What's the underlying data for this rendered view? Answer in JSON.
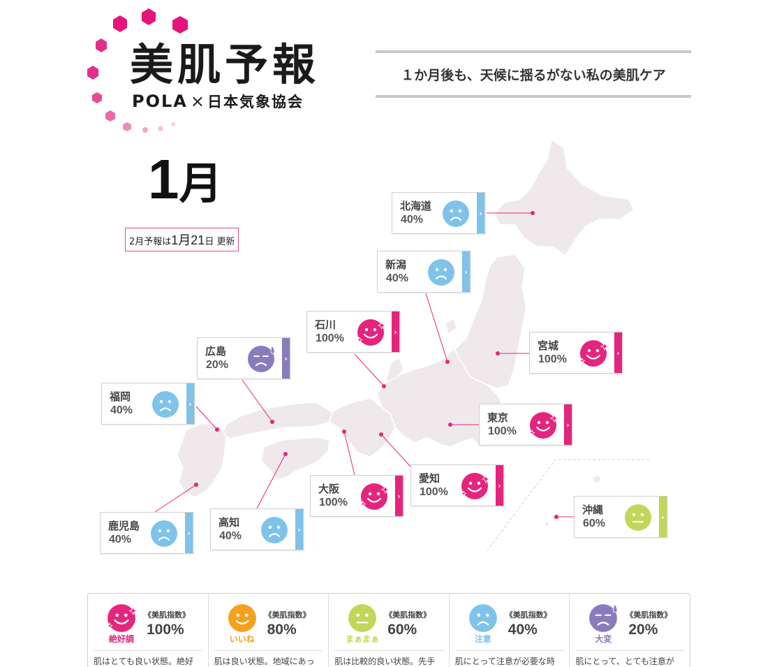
{
  "logo": {
    "title": "美肌予報",
    "brand": "POLA",
    "cross": "×",
    "partner": "日本気象協会"
  },
  "tagline": "１か月後も、天候に揺るがない私の美肌ケア",
  "month": {
    "number": "1",
    "kanji": "月"
  },
  "next_update": {
    "prefix": "2月予報は",
    "date": "1月21",
    "day": "日",
    "suffix": " 更新"
  },
  "colors": {
    "excellent": "#e5257d",
    "good": "#f4a11d",
    "fair": "#c2d65a",
    "caution": "#7fc3ea",
    "severe": "#8a7bbd",
    "map_land": "#efe9eb",
    "connector": "#e5257d"
  },
  "regions": [
    {
      "name": "北海道",
      "pct": "40%",
      "level": "caution"
    },
    {
      "name": "新潟",
      "pct": "40%",
      "level": "caution"
    },
    {
      "name": "石川",
      "pct": "100%",
      "level": "excellent"
    },
    {
      "name": "広島",
      "pct": "20%",
      "level": "severe"
    },
    {
      "name": "宮城",
      "pct": "100%",
      "level": "excellent"
    },
    {
      "name": "福岡",
      "pct": "40%",
      "level": "caution"
    },
    {
      "name": "東京",
      "pct": "100%",
      "level": "excellent"
    },
    {
      "name": "愛知",
      "pct": "100%",
      "level": "excellent"
    },
    {
      "name": "大阪",
      "pct": "100%",
      "level": "excellent"
    },
    {
      "name": "沖縄",
      "pct": "60%",
      "level": "fair"
    },
    {
      "name": "鹿児島",
      "pct": "40%",
      "level": "caution"
    },
    {
      "name": "高知",
      "pct": "40%",
      "level": "caution"
    }
  ],
  "legend": [
    {
      "name": "絶好調",
      "index_label": "《美肌指数》",
      "pct": "100%",
      "level": "excellent",
      "desc": "肌はとても良い状態。絶好"
    },
    {
      "name": "いいね",
      "index_label": "《美肌指数》",
      "pct": "80%",
      "level": "good",
      "desc": "肌は良い状態。地域にあっ"
    },
    {
      "name": "まぁまぁ",
      "index_label": "《美肌指数》",
      "pct": "60%",
      "level": "fair",
      "desc": "肌は比較的良い状態。先手"
    },
    {
      "name": "注意",
      "index_label": "《美肌指数》",
      "pct": "40%",
      "level": "caution",
      "desc": "肌にとって注意が必要な時"
    },
    {
      "name": "大変",
      "index_label": "《美肌指数》",
      "pct": "20%",
      "level": "severe",
      "desc": "肌にとって、とても注意が"
    }
  ]
}
